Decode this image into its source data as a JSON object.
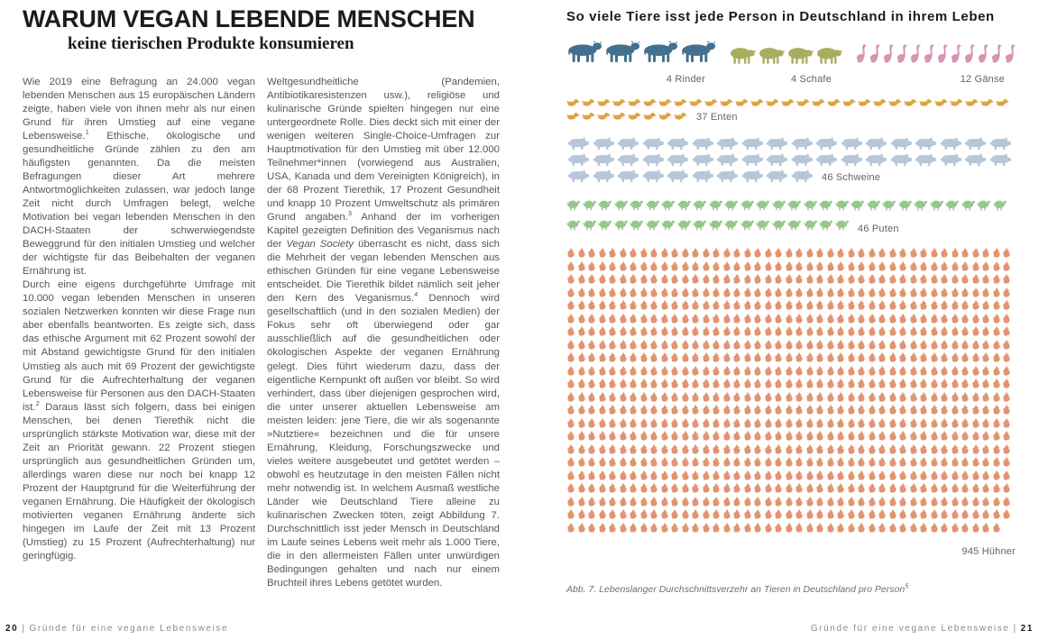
{
  "page_left": {
    "title": "WARUM VEGAN LEBENDE MENSCHEN",
    "subtitle": "keine tierischen Produkte konsumieren",
    "columns": [
      [
        [
          {
            "t": "Wie 2019 eine Befragung an 24.000 vegan lebenden Menschen aus 15 europäischen Ländern zeigte, haben viele von ihnen mehr als nur einen Grund für ihren Umstieg auf eine vegane Lebensweise."
          },
          {
            "t": "1",
            "s": "sup"
          },
          {
            "t": " Ethische, ökologische und gesundheitliche Gründe zählen zu den am häufigsten genannten. Da die meisten Befragungen dieser Art mehrere Antwortmöglichkeiten zulassen, war jedoch lange Zeit nicht durch Umfragen belegt, welche Motivation bei vegan lebenden Menschen in den DACH-Staaten der schwerwiegendste Beweggrund für den initialen Umstieg und welcher der wichtigste für das Beibehalten der veganen Ernährung ist."
          }
        ],
        [
          {
            "t": "Durch eine eigens durchgeführte Umfrage mit 10.000 vegan lebenden Menschen in unseren sozialen Netzwerken konnten wir diese Frage nun aber ebenfalls beantworten. Es zeigte sich, dass das ethische Argument mit 62 Prozent sowohl der mit Abstand gewichtigste Grund für den initialen Umstieg als auch mit 69 Prozent der gewichtigste Grund für die Aufrechterhaltung der veganen Lebensweise für Personen aus den DACH-Staaten ist."
          },
          {
            "t": "2",
            "s": "sup"
          },
          {
            "t": " Daraus lässt sich folgern, dass bei einigen Menschen, bei denen Tierethik nicht die ursprünglich stärkste Motivation war, diese mit der Zeit an Priorität gewann. 22 Prozent stiegen ursprünglich aus gesundheitlichen Gründen um, allerdings waren diese nur noch bei knapp 12 Prozent der Hauptgrund für die Weiterführung der veganen Ernährung. Die Häufigkeit der ökologisch motivierten veganen Ernährung änderte sich hingegen im Laufe der Zeit mit 13 Prozent (Umstieg) zu 15 Prozent (Aufrechterhaltung) nur geringfügig."
          }
        ]
      ],
      [
        [
          {
            "t": "Weltgesundheitliche (Pandemien, Antibiotikaresistenzen usw.), religiöse und kulinarische Gründe spielten hingegen nur eine untergeordnete Rolle. Dies deckt sich mit einer der wenigen weiteren Single-Choice-Umfragen zur Hauptmotivation für den Umstieg mit über 12.000 Teilnehmer*innen (vorwiegend aus Australien, USA, Kanada und dem Vereinigten Königreich), in der 68 Prozent Tierethik, 17 Prozent Gesundheit und knapp 10 Prozent Umweltschutz als primären Grund angaben."
          },
          {
            "t": "3",
            "s": "sup"
          },
          {
            "t": " Anhand der im vorherigen Kapitel gezeigten Definition des Veganismus nach der "
          },
          {
            "t": "Vegan Society",
            "s": "it"
          },
          {
            "t": " überrascht es nicht, dass sich die Mehrheit der vegan lebenden Menschen aus ethischen Gründen für eine vegane Lebensweise entscheidet. Die Tierethik bildet nämlich seit jeher den Kern des Veganismus."
          },
          {
            "t": "4",
            "s": "sup"
          },
          {
            "t": " Dennoch wird gesellschaftlich (und in den sozialen Medien) der Fokus sehr oft überwiegend oder gar ausschließlich auf die gesundheitlichen oder ökologischen Aspekte der veganen Ernährung gelegt. Dies führt wiederum dazu, dass der eigentliche Kernpunkt oft außen vor bleibt. So wird verhindert, dass über diejenigen gesprochen wird, die unter unserer aktuellen Lebensweise am meisten leiden: jene Tiere, die wir als sogenannte »Nutztiere« bezeichnen und die für unsere Ernährung, Kleidung, Forschungszwecke und vieles weitere ausgebeutet und getötet werden – obwohl es heutzutage in den meisten Fällen nicht mehr notwendig ist. In welchem Ausmaß westliche Länder wie Deutschland Tiere alleine zu kulinarischen Zwecken töten, zeigt Abbildung 7. Durchschnittlich isst jeder Mensch in Deutschland im Laufe seines Lebens weit mehr als 1.000 Tiere, die in den allermeisten Fällen unter unwürdigen Bedingungen gehalten und nach nur einem Bruchteil ihres Lebens getötet wurden."
          }
        ]
      ]
    ],
    "footer": {
      "page_number": "20",
      "text": "Gründe für eine vegane Lebensweise"
    }
  },
  "page_right": {
    "caption_segments": [
      {
        "t": "Abb. 7. Lebenslanger Durchschnittsverzehr an Tieren in Deutschland pro Person"
      },
      {
        "t": "5",
        "s": "sup"
      }
    ],
    "footer": {
      "text": "Gründe für eine vegane Lebensweise",
      "page_number": "21"
    }
  },
  "chart_data": {
    "type": "pictogram",
    "title": "So viele Tiere isst jede Person in Deutschland in ihrem Leben",
    "caption": "Abb. 7. Lebenslanger Durchschnittsverzehr an Tieren in Deutschland pro Person",
    "groups": [
      {
        "animal": "Rinder",
        "icon": "cow-icon",
        "count": 4,
        "label": "4 Rinder",
        "color": "#44708f",
        "row": 1
      },
      {
        "animal": "Schafe",
        "icon": "sheep-icon",
        "count": 4,
        "label": "4 Schafe",
        "color": "#a9ad60",
        "row": 1
      },
      {
        "animal": "Gänse",
        "icon": "goose-icon",
        "count": 12,
        "label": "12 Gänse",
        "color": "#d794b3",
        "row": 1
      },
      {
        "animal": "Enten",
        "icon": "duck-icon",
        "count": 37,
        "label": "37 Enten",
        "color": "#dda43e",
        "per_row": 29
      },
      {
        "animal": "Schweine",
        "icon": "pig-icon",
        "count": 46,
        "label": "46 Schweine",
        "color": "#b7c6d9",
        "per_row": 18
      },
      {
        "animal": "Puten",
        "icon": "turkey-icon",
        "count": 46,
        "label": "46 Puten",
        "color": "#97c78d",
        "per_row": 28
      },
      {
        "animal": "Hühner",
        "icon": "chicken-icon",
        "count": 945,
        "label": "945 Hühner",
        "color": "#e29470",
        "per_row": 43
      }
    ]
  }
}
